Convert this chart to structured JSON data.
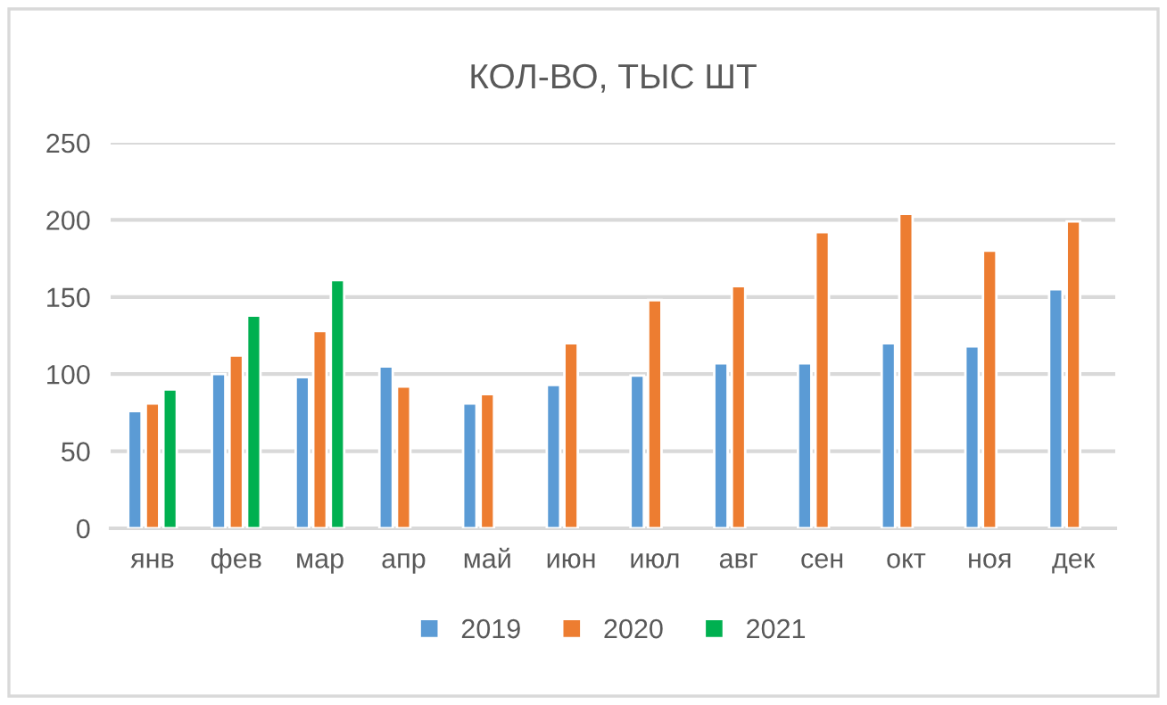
{
  "chart_data": {
    "type": "bar",
    "title": "КОЛ-ВО, ТЫС ШТ",
    "categories": [
      "янв",
      "фев",
      "мар",
      "апр",
      "май",
      "июн",
      "июл",
      "авг",
      "сен",
      "окт",
      "ноя",
      "дек"
    ],
    "series": [
      {
        "name": "2019",
        "color": "#5b9bd5",
        "values": [
          76,
          100,
          98,
          105,
          81,
          93,
          99,
          107,
          107,
          120,
          118,
          155
        ]
      },
      {
        "name": "2020",
        "color": "#ed7d31",
        "values": [
          81,
          112,
          128,
          92,
          87,
          120,
          148,
          157,
          192,
          204,
          180,
          199
        ]
      },
      {
        "name": "2021",
        "color": "#00b050",
        "values": [
          90,
          138,
          161,
          null,
          null,
          null,
          null,
          null,
          null,
          null,
          null,
          null
        ]
      }
    ],
    "ylim": [
      0,
      250
    ],
    "yticks": [
      0,
      50,
      100,
      150,
      200,
      250
    ],
    "grid": "y",
    "legend": "bottom"
  }
}
